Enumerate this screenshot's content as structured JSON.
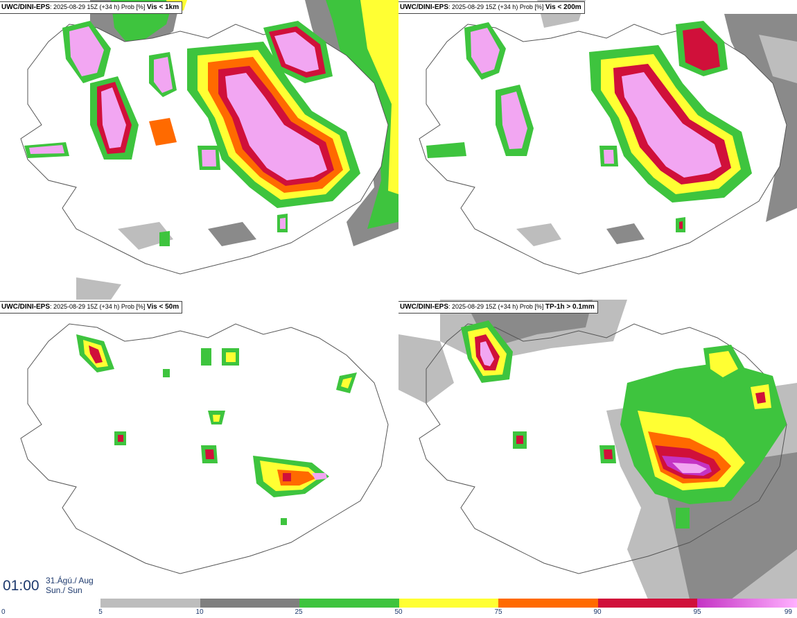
{
  "panels": [
    {
      "id": "vis1km",
      "model": "UWC/DINI-EPS",
      "run": ": 2025-08-29 15Z (+34 h) Prob [%]",
      "variable": "Vis < 1km"
    },
    {
      "id": "vis200m",
      "model": "UWC/DINI-EPS",
      "run": ": 2025-08-29 15Z (+34 h) Prob [%]",
      "variable": "Vis < 200m"
    },
    {
      "id": "vis50m",
      "model": "UWC/DINI-EPS",
      "run": ": 2025-08-29 15Z (+34 h) Prob [%]",
      "variable": "Vis < 50m"
    },
    {
      "id": "tp1h",
      "model": "UWC/DINI-EPS",
      "run": ": 2025-08-29 15Z (+34 h) Prob [%]",
      "variable": "TP-1h > 0.1mm"
    }
  ],
  "valid_time": {
    "time": "01:00",
    "date_line1": "31.Ágú./ Aug",
    "date_line2": "Sun./ Sun"
  },
  "colorbar": {
    "ticks": [
      "0",
      "5",
      "10",
      "25",
      "50",
      "75",
      "90",
      "95",
      "99"
    ],
    "colors": [
      "#bdbdbd",
      "#7f7f7f",
      "#3ec43e",
      "#ffff33",
      "#ff6a00",
      "#d0103a",
      "#c433c4",
      "#ffb0ff"
    ]
  },
  "colors": {
    "land_outline": "#555555",
    "water": "#ffffff",
    "p5": "#bdbdbd",
    "p10": "#8a8a8a",
    "p25": "#3ec43e",
    "p50": "#ffff33",
    "p75": "#ff6a00",
    "p90": "#d0103a",
    "p95": "#c433c4",
    "p99": "#f2a6f2"
  }
}
